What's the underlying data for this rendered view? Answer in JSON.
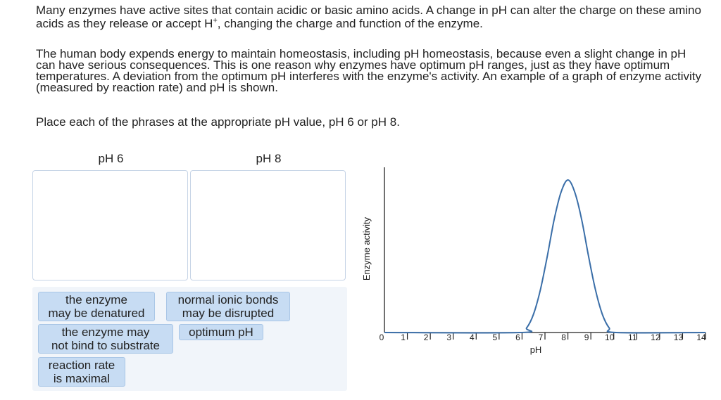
{
  "instructions": {
    "p1_a": "Many enzymes have active sites that contain acidic or basic amino acids. A change in pH can alter the charge on these amino acids as they release or accept H",
    "p1_sup": "+",
    "p1_b": ", changing the charge and function of the enzyme.",
    "p2": "The human body expends energy to maintain homeostasis, including pH homeostasis, because even a slight change in pH can have serious consequences. This is one reason why enzymes have optimum pH ranges, just as they have optimum temperatures. A deviation from the optimum pH interferes with the enzyme's activity. An example of a graph of enzyme activity (measured by reaction rate) and pH is shown.",
    "p3": "Place each of the phrases at the appropriate pH value, pH 6 or pH 8."
  },
  "targets": [
    {
      "label": "pH 6"
    },
    {
      "label": "pH 8"
    }
  ],
  "phrases": [
    {
      "line1": "the enzyme",
      "line2": "may be denatured"
    },
    {
      "line1": "normal ionic bonds",
      "line2": "may be disrupted"
    },
    {
      "line1": "the enzyme may",
      "line2": "not bind to substrate"
    },
    {
      "line1": "optimum pH",
      "line2": ""
    },
    {
      "line1": "reaction rate",
      "line2": "is maximal"
    }
  ],
  "chart_data": {
    "type": "line",
    "xlabel": "pH",
    "ylabel": "Enzyme activity",
    "x_ticks": [
      "0",
      "1",
      "2",
      "3",
      "4",
      "5",
      "6",
      "7",
      "8",
      "9",
      "10",
      "11",
      "12",
      "13",
      "14"
    ],
    "xlim": [
      0,
      14
    ],
    "ylim": [
      0,
      1
    ],
    "grid": false,
    "series": [
      {
        "color": "#3a6ea8",
        "x": [
          0,
          5.9,
          6.2,
          6.5,
          6.8,
          7.1,
          7.4,
          7.7,
          8.0,
          8.3,
          8.6,
          8.9,
          9.2,
          9.5,
          9.8,
          10.1,
          14
        ],
        "y": [
          0,
          0,
          0.03,
          0.12,
          0.28,
          0.5,
          0.74,
          0.92,
          1.0,
          0.92,
          0.74,
          0.5,
          0.28,
          0.12,
          0.03,
          0,
          0
        ]
      }
    ]
  }
}
